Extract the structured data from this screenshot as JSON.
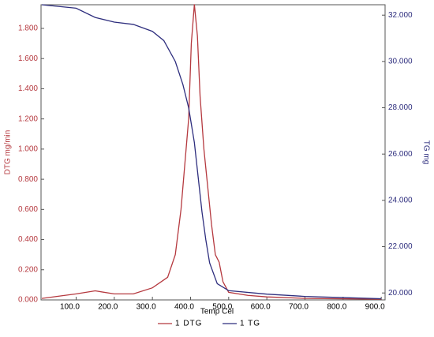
{
  "chart_data": {
    "type": "line",
    "x_label": "Temp Cel",
    "y_label": "DTG mg/min",
    "y2_label": "TG mg",
    "xlim": [
      8,
      910
    ],
    "ylim": [
      0,
      1.957
    ],
    "y2lim": [
      19.7,
      32.45
    ],
    "xticks": [
      {
        "value": 100,
        "label": "100.0"
      },
      {
        "value": 200,
        "label": "200.0"
      },
      {
        "value": 300,
        "label": "300.0"
      },
      {
        "value": 400,
        "label": "400.0"
      },
      {
        "value": 500,
        "label": "500.0"
      },
      {
        "value": 600,
        "label": "600.0"
      },
      {
        "value": 700,
        "label": "700.0"
      },
      {
        "value": 800,
        "label": "800.0"
      },
      {
        "value": 900,
        "label": "900.0"
      }
    ],
    "yticks": [
      {
        "value": 0,
        "label": "0.000"
      },
      {
        "value": 0.2,
        "label": "0.200"
      },
      {
        "value": 0.4,
        "label": "0.400"
      },
      {
        "value": 0.6,
        "label": "0.600"
      },
      {
        "value": 0.8,
        "label": "0.800"
      },
      {
        "value": 1,
        "label": "1.000"
      },
      {
        "value": 1.2,
        "label": "1.200"
      },
      {
        "value": 1.4,
        "label": "1.400"
      },
      {
        "value": 1.6,
        "label": "1.600"
      },
      {
        "value": 1.8,
        "label": "1.800"
      }
    ],
    "y2ticks": [
      {
        "value": 20,
        "label": "20.000"
      },
      {
        "value": 22,
        "label": "22.000"
      },
      {
        "value": 24,
        "label": "24.000"
      },
      {
        "value": 26,
        "label": "26.000"
      },
      {
        "value": 28,
        "label": "28.000"
      },
      {
        "value": 30,
        "label": "30.000"
      },
      {
        "value": 32,
        "label": "32.000"
      }
    ],
    "series": [
      {
        "name": "1 DTG",
        "color": "#b5393f",
        "x": [
          10,
          100,
          150,
          200,
          250,
          300,
          340,
          360,
          375,
          385,
          395,
          402,
          410,
          418,
          425,
          435,
          445,
          455,
          465,
          475,
          485,
          500,
          550,
          600,
          700,
          900
        ],
        "values": [
          0.01,
          0.04,
          0.06,
          0.04,
          0.04,
          0.08,
          0.15,
          0.3,
          0.6,
          0.9,
          1.2,
          1.7,
          1.96,
          1.75,
          1.35,
          1.0,
          0.75,
          0.5,
          0.3,
          0.25,
          0.12,
          0.05,
          0.03,
          0.02,
          0.01,
          0.005
        ]
      },
      {
        "name": "1 TG",
        "color": "#2e2e7e",
        "axis": "y2",
        "x": [
          10,
          100,
          150,
          200,
          250,
          300,
          330,
          360,
          380,
          395,
          410,
          420,
          430,
          440,
          450,
          470,
          500,
          600,
          700,
          800,
          900
        ],
        "values": [
          32.45,
          32.3,
          31.9,
          31.7,
          31.6,
          31.3,
          30.9,
          30.0,
          29.0,
          28.0,
          26.5,
          25.0,
          23.5,
          22.3,
          21.3,
          20.4,
          20.1,
          19.95,
          19.85,
          19.8,
          19.75
        ]
      }
    ]
  }
}
